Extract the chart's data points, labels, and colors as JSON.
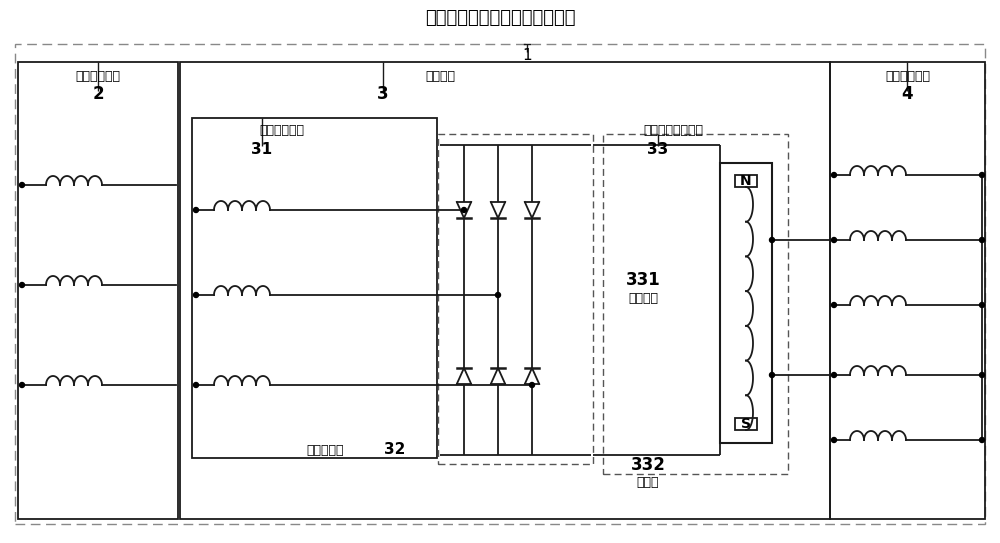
{
  "title": "无刷交流复合励磁无刷直流电机",
  "label_1": "1",
  "label_2": "2",
  "label_3": "3",
  "label_4": "4",
  "label_31": "31",
  "label_32": "32",
  "label_33": "33",
  "label_331": "331",
  "label_332": "332",
  "text_stator_excitation": "定子励磁绕组",
  "text_motor_rotor": "电机转子",
  "text_stator_power": "定子功率绕组",
  "text_rotor_excitation": "转子励磁绕组",
  "text_rotating_rectifier": "旋转整流器",
  "text_rotor_power": "转子功率励磁单元",
  "text_dc_winding": "直流绕组",
  "text_permanent_magnet": "永磁体",
  "text_N": "N",
  "text_S": "S",
  "bg_color": "#ffffff",
  "line_color": "#1a1a1a",
  "dashed_color": "#888888",
  "font_color": "#000000"
}
